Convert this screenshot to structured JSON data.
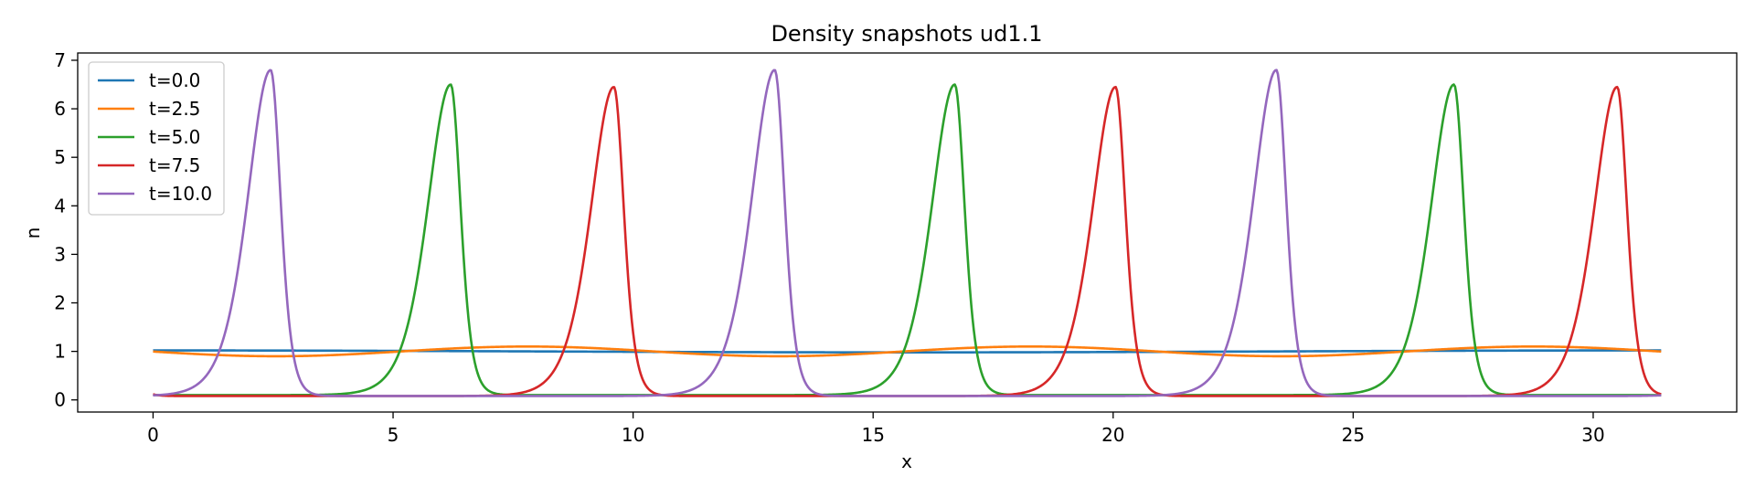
{
  "chart_data": {
    "type": "line",
    "title": "Density snapshots  ud1.1",
    "xlabel": "x",
    "ylabel": "n",
    "xlim": [
      -1.57,
      32.99
    ],
    "ylim": [
      -0.25,
      7.15
    ],
    "xticks": [
      0,
      5,
      10,
      15,
      20,
      25,
      30
    ],
    "yticks": [
      0,
      1,
      2,
      3,
      4,
      5,
      6,
      7
    ],
    "grid": false,
    "legend_position": "top-left",
    "domain_length": 31.4159,
    "series": [
      {
        "name": "t=0.0",
        "color": "#1f77b4",
        "kind": "cosine",
        "mean": 1.0,
        "amplitude": 0.02,
        "peak_x": 0.0,
        "period": 31.4159
      },
      {
        "name": "t=2.5",
        "color": "#ff7f0e",
        "kind": "cosine",
        "mean": 1.0,
        "amplitude": 0.1,
        "peak_x": 7.8,
        "period": 10.472
      },
      {
        "name": "t=5.0",
        "color": "#2ca02c",
        "kind": "solitary",
        "base": 0.1,
        "peak": 6.5,
        "peaks_x": [
          6.2,
          16.7,
          27.1
        ],
        "rise_width": 0.65,
        "fall_width": 0.28,
        "period": 10.472
      },
      {
        "name": "t=7.5",
        "color": "#d62728",
        "kind": "solitary",
        "base": 0.08,
        "peak": 6.45,
        "peaks_x": [
          9.6,
          20.05,
          30.5
        ],
        "rise_width": 0.65,
        "fall_width": 0.28,
        "period": 10.472
      },
      {
        "name": "t=10.0",
        "color": "#9467bd",
        "kind": "solitary",
        "base": 0.08,
        "peak": 6.8,
        "peaks_x": [
          2.45,
          12.95,
          23.4
        ],
        "rise_width": 0.65,
        "fall_width": 0.28,
        "period": 10.472
      }
    ]
  }
}
